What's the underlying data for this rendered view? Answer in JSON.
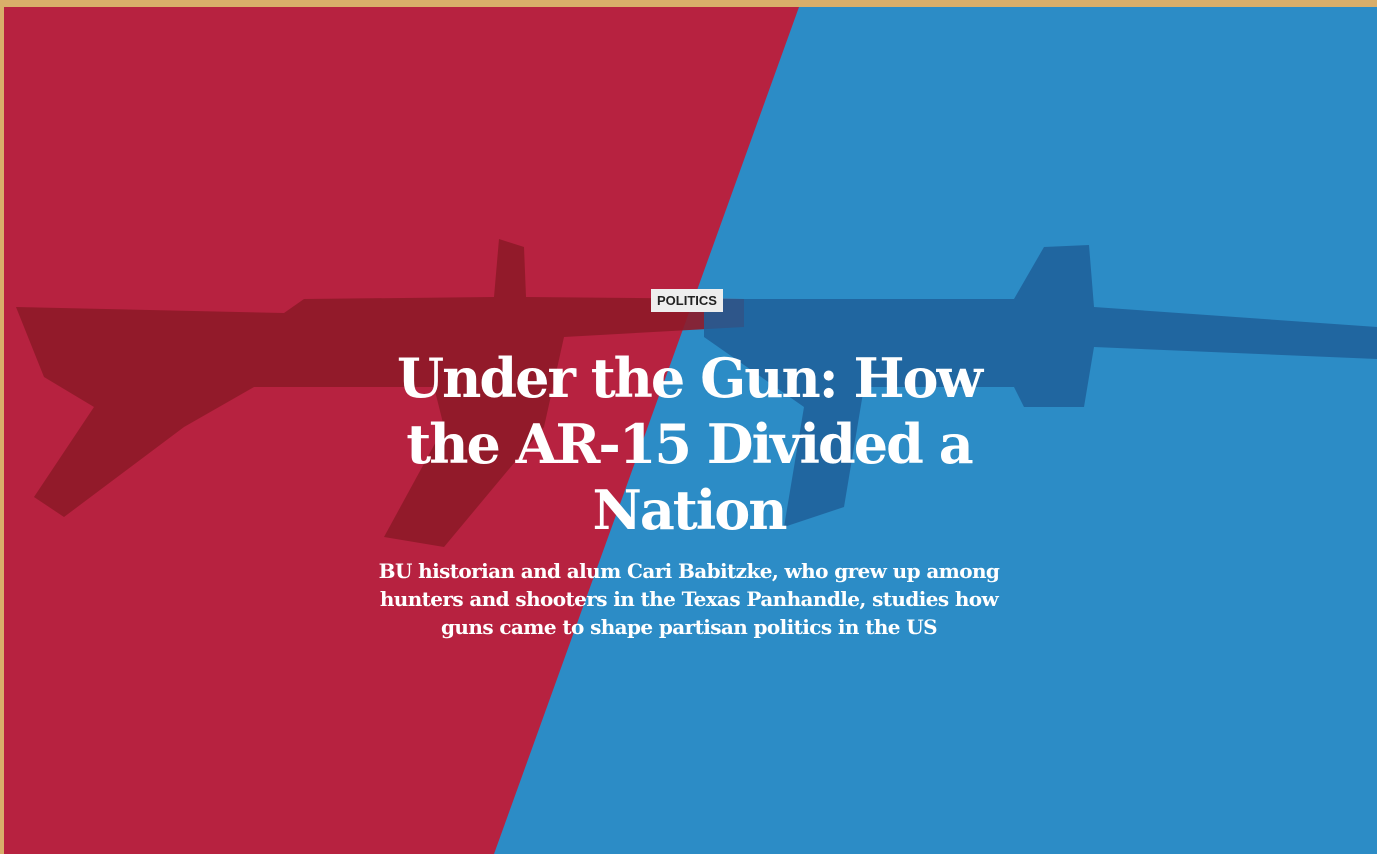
{
  "hero": {
    "category": "POLITICS",
    "title": "Under the Gun: How the AR-15 Divided a Nation",
    "subtitle": "BU historian and alum Cari Babitzke, who grew up among hunters and shooters in the Texas Panhandle, studies how guns came to shape partisan politics in the US"
  }
}
